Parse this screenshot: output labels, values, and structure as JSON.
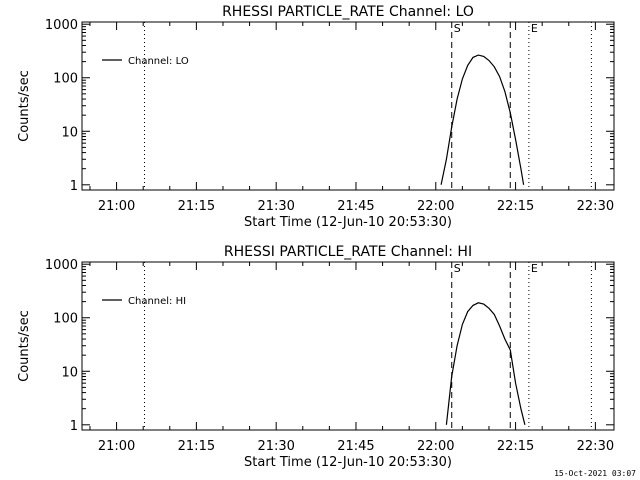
{
  "chart_data": [
    {
      "type": "line",
      "title": "RHESSI PARTICLE_RATE Channel: LO",
      "xlabel": "Start Time (12-Jun-10 20:53:30)",
      "ylabel": "Counts/sec",
      "yscale": "log",
      "xlim": [
        "20:53:30",
        "22:33:30"
      ],
      "ylim": [
        0.8,
        1100
      ],
      "x_ticks": [
        "21:00",
        "21:15",
        "21:30",
        "21:45",
        "22:00",
        "22:15",
        "22:30"
      ],
      "y_ticks": [
        "1",
        "10",
        "100",
        "1000"
      ],
      "legend": {
        "position": "top-left",
        "entries": [
          "Channel: LO"
        ]
      },
      "series": [
        {
          "name": "Channel: LO",
          "x": [
            "22:01:00",
            "22:02:00",
            "22:03:00",
            "22:04:00",
            "22:05:00",
            "22:06:00",
            "22:07:00",
            "22:08:00",
            "22:09:00",
            "22:10:00",
            "22:11:00",
            "22:12:00",
            "22:13:00",
            "22:14:00",
            "22:15:00",
            "22:16:00",
            "22:16:30"
          ],
          "y": [
            1,
            3,
            12,
            40,
            95,
            170,
            240,
            265,
            250,
            210,
            160,
            105,
            55,
            22,
            7,
            2,
            1
          ]
        }
      ],
      "markers": [
        {
          "label": "",
          "time": "21:05:15",
          "style": "dotted"
        },
        {
          "label": "S",
          "time": "22:03:00",
          "style": "dashed"
        },
        {
          "label": "",
          "time": "22:14:00",
          "style": "dashed"
        },
        {
          "label": "E",
          "time": "22:17:30",
          "style": "dotted"
        },
        {
          "label": "",
          "time": "22:29:15",
          "style": "dotted"
        }
      ]
    },
    {
      "type": "line",
      "title": "RHESSI PARTICLE_RATE Channel: HI",
      "xlabel": "Start Time (12-Jun-10 20:53:30)",
      "ylabel": "Counts/sec",
      "yscale": "log",
      "xlim": [
        "20:53:30",
        "22:33:30"
      ],
      "ylim": [
        0.8,
        1100
      ],
      "x_ticks": [
        "21:00",
        "21:15",
        "21:30",
        "21:45",
        "22:00",
        "22:15",
        "22:30"
      ],
      "y_ticks": [
        "1",
        "10",
        "100",
        "1000"
      ],
      "legend": {
        "position": "top-left",
        "entries": [
          "Channel: HI"
        ]
      },
      "series": [
        {
          "name": "Channel: HI",
          "x": [
            "22:02:00",
            "22:03:00",
            "22:04:00",
            "22:05:00",
            "22:06:00",
            "22:07:00",
            "22:08:00",
            "22:09:00",
            "22:10:00",
            "22:11:00",
            "22:12:00",
            "22:13:00",
            "22:14:00",
            "22:15:00",
            "22:16:00",
            "22:16:45"
          ],
          "y": [
            1,
            8,
            30,
            75,
            130,
            170,
            190,
            180,
            150,
            115,
            70,
            40,
            25,
            6,
            2,
            1
          ]
        }
      ],
      "markers": [
        {
          "label": "",
          "time": "21:05:15",
          "style": "dotted"
        },
        {
          "label": "S",
          "time": "22:03:00",
          "style": "dashed"
        },
        {
          "label": "",
          "time": "22:14:00",
          "style": "dashed"
        },
        {
          "label": "E",
          "time": "22:17:30",
          "style": "dotted"
        },
        {
          "label": "",
          "time": "22:29:15",
          "style": "dotted"
        }
      ]
    }
  ],
  "footer": {
    "timestamp": "15-Oct-2021 03:07"
  }
}
